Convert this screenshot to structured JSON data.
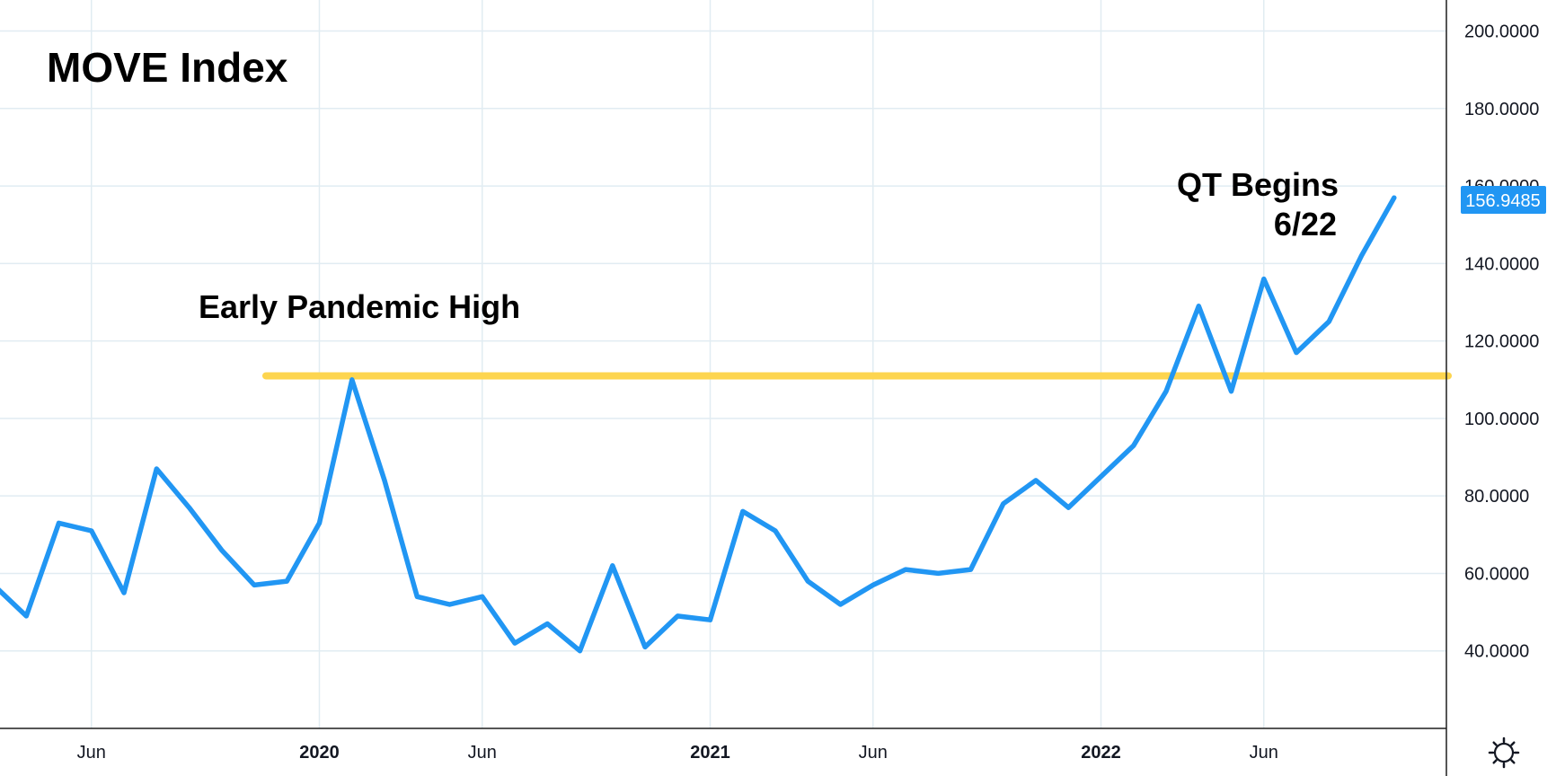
{
  "chart_data": {
    "type": "line",
    "title": "MOVE Index",
    "xlabel": "",
    "ylabel": "",
    "ylim": [
      20,
      208
    ],
    "y_ticks": [
      "40.0000",
      "60.0000",
      "80.0000",
      "100.0000",
      "120.0000",
      "140.0000",
      "160.0000",
      "180.0000",
      "200.0000"
    ],
    "y_tick_values": [
      40,
      60,
      80,
      100,
      120,
      140,
      160,
      180,
      200
    ],
    "x_ticks": [
      {
        "label": "Jun",
        "date": "2019-06",
        "year": false
      },
      {
        "label": "2020",
        "date": "2020-01",
        "year": true
      },
      {
        "label": "Jun",
        "date": "2020-06",
        "year": false
      },
      {
        "label": "2021",
        "date": "2021-01",
        "year": true
      },
      {
        "label": "Jun",
        "date": "2021-06",
        "year": false
      },
      {
        "label": "2022",
        "date": "2022-01",
        "year": true
      },
      {
        "label": "Jun",
        "date": "2022-06",
        "year": false
      }
    ],
    "series": [
      {
        "color": "#2196f3",
        "x": [
          "2019-03",
          "2019-04",
          "2019-05",
          "2019-06",
          "2019-07",
          "2019-08",
          "2019-09",
          "2019-10",
          "2019-11",
          "2019-12",
          "2020-01",
          "2020-02",
          "2020-03",
          "2020-04",
          "2020-05",
          "2020-06",
          "2020-07",
          "2020-08",
          "2020-09",
          "2020-10",
          "2020-11",
          "2020-12",
          "2021-01",
          "2021-02",
          "2021-03",
          "2021-04",
          "2021-05",
          "2021-06",
          "2021-07",
          "2021-08",
          "2021-09",
          "2021-10",
          "2021-11",
          "2021-12",
          "2022-01",
          "2022-02",
          "2022-03",
          "2022-04",
          "2022-05",
          "2022-06",
          "2022-07",
          "2022-08",
          "2022-09",
          "2022-10"
        ],
        "values": [
          57,
          49,
          73,
          71,
          55,
          87,
          77,
          66,
          57,
          58,
          73,
          110,
          84,
          54,
          52,
          54,
          42,
          47,
          40,
          62,
          41,
          49,
          48,
          76,
          71,
          58,
          52,
          57,
          61,
          60,
          61,
          78,
          84,
          77,
          85,
          93,
          107,
          129,
          107,
          136,
          117,
          125,
          142,
          156.9485
        ]
      }
    ],
    "reference_line": {
      "value": 111,
      "color": "#fdd54f"
    },
    "last_value_label": "156.9485",
    "annotations": [
      {
        "text": "Early Pandemic High"
      },
      {
        "text": "QT Begins"
      },
      {
        "text": "6/22"
      }
    ],
    "grid": true,
    "settings_icon": "gear-icon"
  }
}
